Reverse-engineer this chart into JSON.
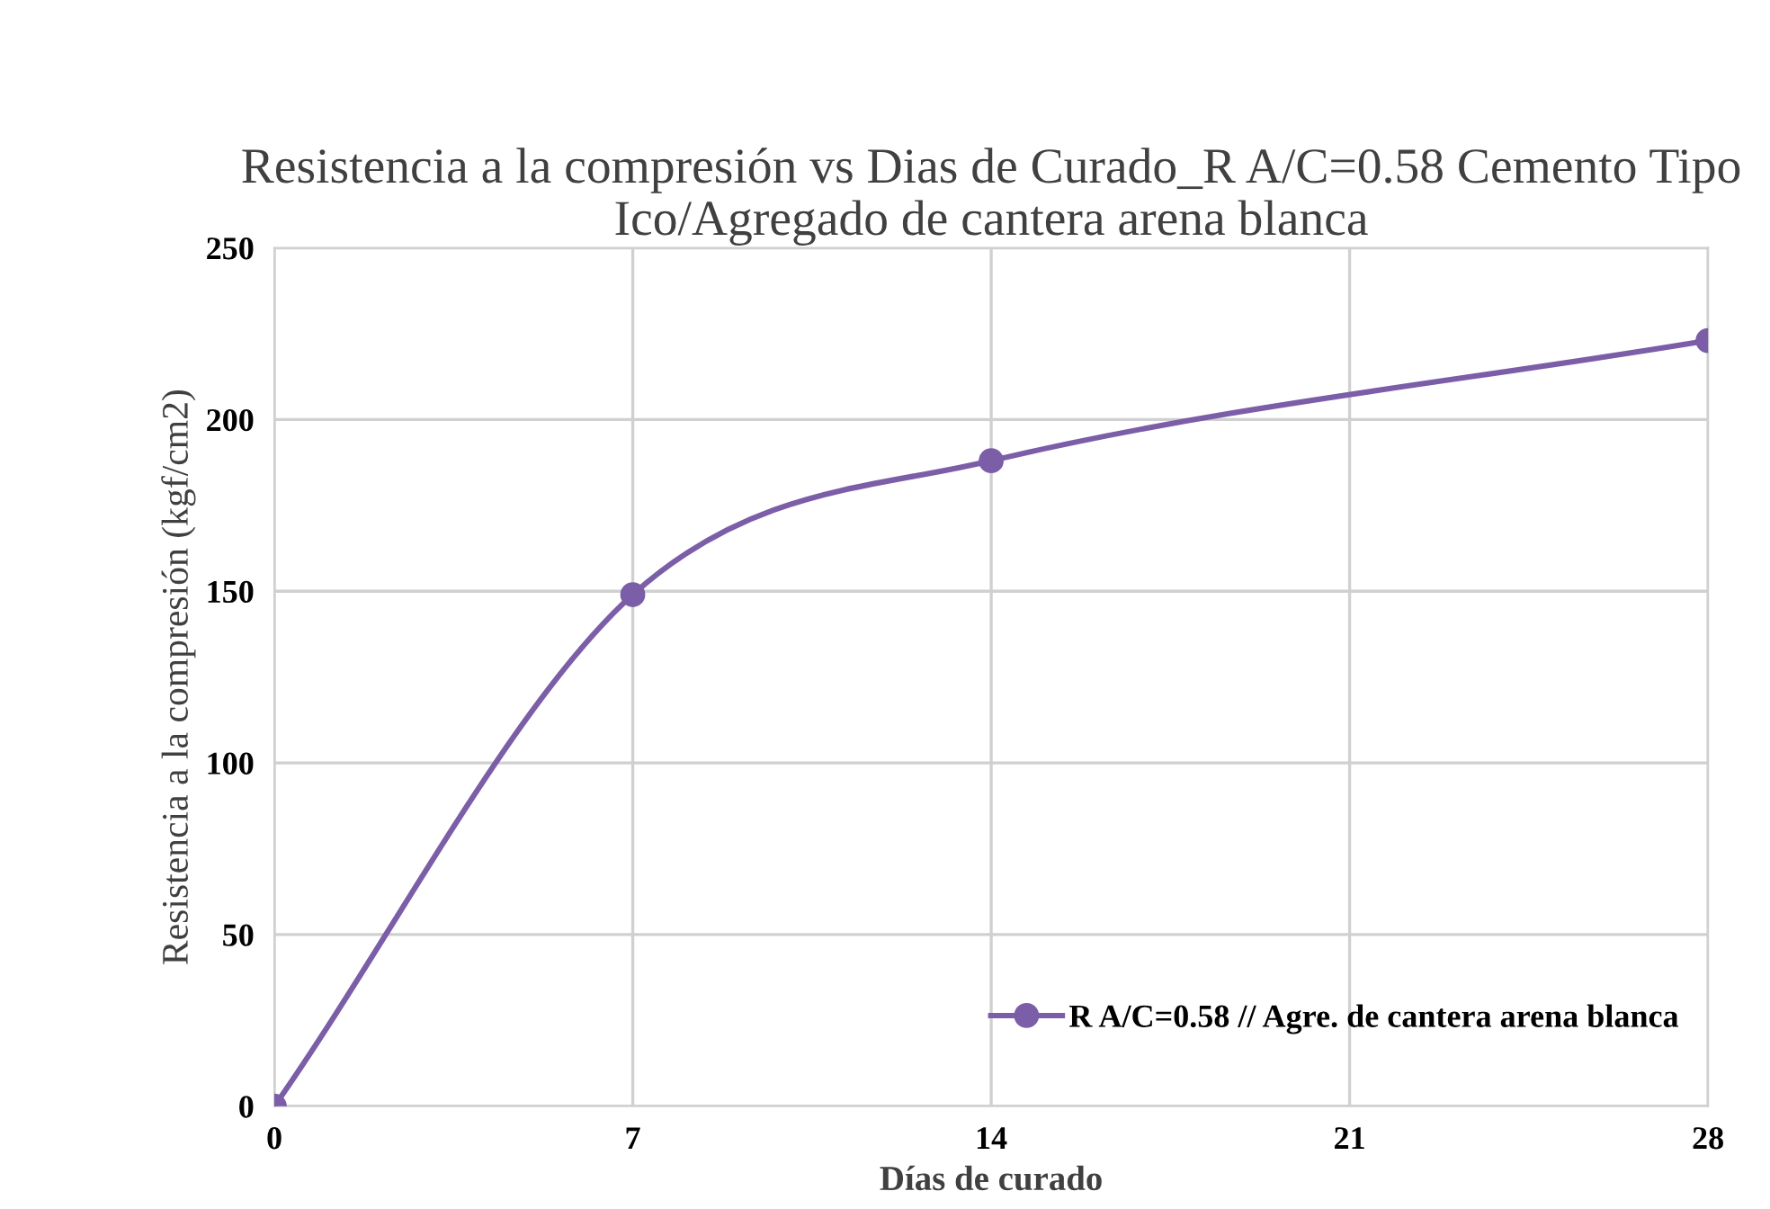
{
  "chart_data": {
    "type": "line",
    "title": "Resistencia a la compresión vs Dias de Curado_R A/C=0.58 Cemento Tipo Ico/Agregado de cantera arena blanca",
    "xlabel": "Días de curado",
    "ylabel": "Resistencia a la compresión (kgf/cm2)",
    "x": [
      0,
      7,
      14,
      28
    ],
    "series": [
      {
        "name": "R A/C=0.58 // Agre. de cantera arena blanca",
        "color": "#7b5ea7",
        "values": [
          0,
          149,
          188,
          223
        ]
      }
    ],
    "xlim": [
      0,
      28
    ],
    "xticks": [
      0,
      7,
      14,
      21,
      28
    ],
    "ylim": [
      0,
      250
    ],
    "yticks": [
      0,
      50,
      100,
      150,
      200,
      250
    ],
    "grid": true,
    "legend": "bottom right",
    "marker": "circle",
    "line_style": "solid"
  }
}
